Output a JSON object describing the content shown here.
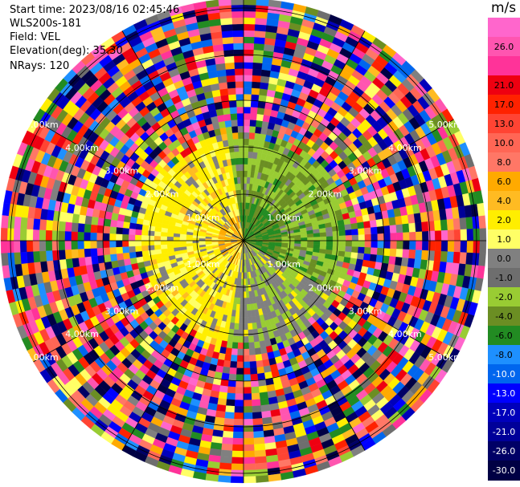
{
  "info": {
    "start_time": "Start time: 2023/08/16 02:45:46",
    "instrument": "WLS200s-181",
    "field": "Field: VEL",
    "elevation": "Elevation(deg): 35.30",
    "nrays": "NRays: 120"
  },
  "colorbar": {
    "unit": "m/s",
    "levels": [
      {
        "label": "",
        "color": "#ff66cc"
      },
      {
        "label": "26.0",
        "color": "#ff55b0"
      },
      {
        "label": "",
        "color": "#ff3399"
      },
      {
        "label": "21.0",
        "color": "#ee0011"
      },
      {
        "label": "17.0",
        "color": "#ff2200"
      },
      {
        "label": "13.0",
        "color": "#ff4433"
      },
      {
        "label": "10.0",
        "color": "#ff6655"
      },
      {
        "label": "8.0",
        "color": "#ff7766"
      },
      {
        "label": "6.0",
        "color": "#ffaa00"
      },
      {
        "label": "4.0",
        "color": "#ffbb22"
      },
      {
        "label": "2.0",
        "color": "#ffee00"
      },
      {
        "label": "1.0",
        "color": "#ffff66"
      },
      {
        "label": "0.0",
        "color": "#808080"
      },
      {
        "label": "-1.0",
        "color": "#6e6e6e"
      },
      {
        "label": "-2.0",
        "color": "#99cc33"
      },
      {
        "label": "-4.0",
        "color": "#6b8e23"
      },
      {
        "label": "-6.0",
        "color": "#228b22"
      },
      {
        "label": "-8.0",
        "color": "#1e90ff"
      },
      {
        "label": "-10.0",
        "color": "#0066ee"
      },
      {
        "label": "-13.0",
        "color": "#0000ff"
      },
      {
        "label": "-17.0",
        "color": "#0000bb"
      },
      {
        "label": "-21.0",
        "color": "#000099"
      },
      {
        "label": "-26.0",
        "color": "#000066"
      },
      {
        "label": "-30.0",
        "color": "#000044"
      }
    ]
  },
  "chart_data": {
    "type": "heatmap",
    "projection": "polar PPI (plan position indicator)",
    "field": "VEL",
    "units": "m/s",
    "nrays": 120,
    "range_rings_km": [
      "1.00km",
      "2.00km",
      "3.00km",
      "4.00km",
      "5.00km"
    ],
    "color_scale_ticks": [
      26.0,
      21.0,
      17.0,
      13.0,
      10.0,
      8.0,
      6.0,
      4.0,
      2.0,
      1.0,
      0.0,
      -1.0,
      -2.0,
      -4.0,
      -6.0,
      -8.0,
      -10.0,
      -13.0,
      -17.0,
      -21.0,
      -26.0,
      -30.0
    ],
    "pattern": {
      "inner_region_west": "positive (yellow / orange, 1 to 6 m/s)",
      "inner_region_east": "negative (green, -2 to -6 m/s)",
      "inner_region_south": "near zero (gray)",
      "outer_region": "noise, all colors"
    }
  }
}
